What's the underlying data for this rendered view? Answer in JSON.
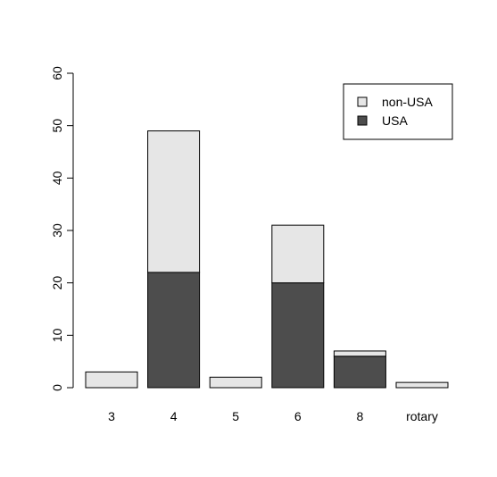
{
  "chart_data": {
    "type": "bar",
    "stacked": true,
    "categories": [
      "3",
      "4",
      "5",
      "6",
      "8",
      "rotary"
    ],
    "series": [
      {
        "name": "USA",
        "values": [
          0,
          22,
          0,
          20,
          6,
          0
        ],
        "color": "#4d4d4d"
      },
      {
        "name": "non-USA",
        "values": [
          3,
          27,
          2,
          11,
          1,
          1
        ],
        "color": "#e6e6e6"
      }
    ],
    "title": "",
    "xlabel": "",
    "ylabel": "",
    "ylim": [
      0,
      60
    ],
    "yticks": [
      "0",
      "10",
      "20",
      "30",
      "40",
      "50",
      "60"
    ],
    "grid": false,
    "legend": {
      "position": "top-right",
      "entries": [
        "non-USA",
        "USA"
      ]
    }
  }
}
